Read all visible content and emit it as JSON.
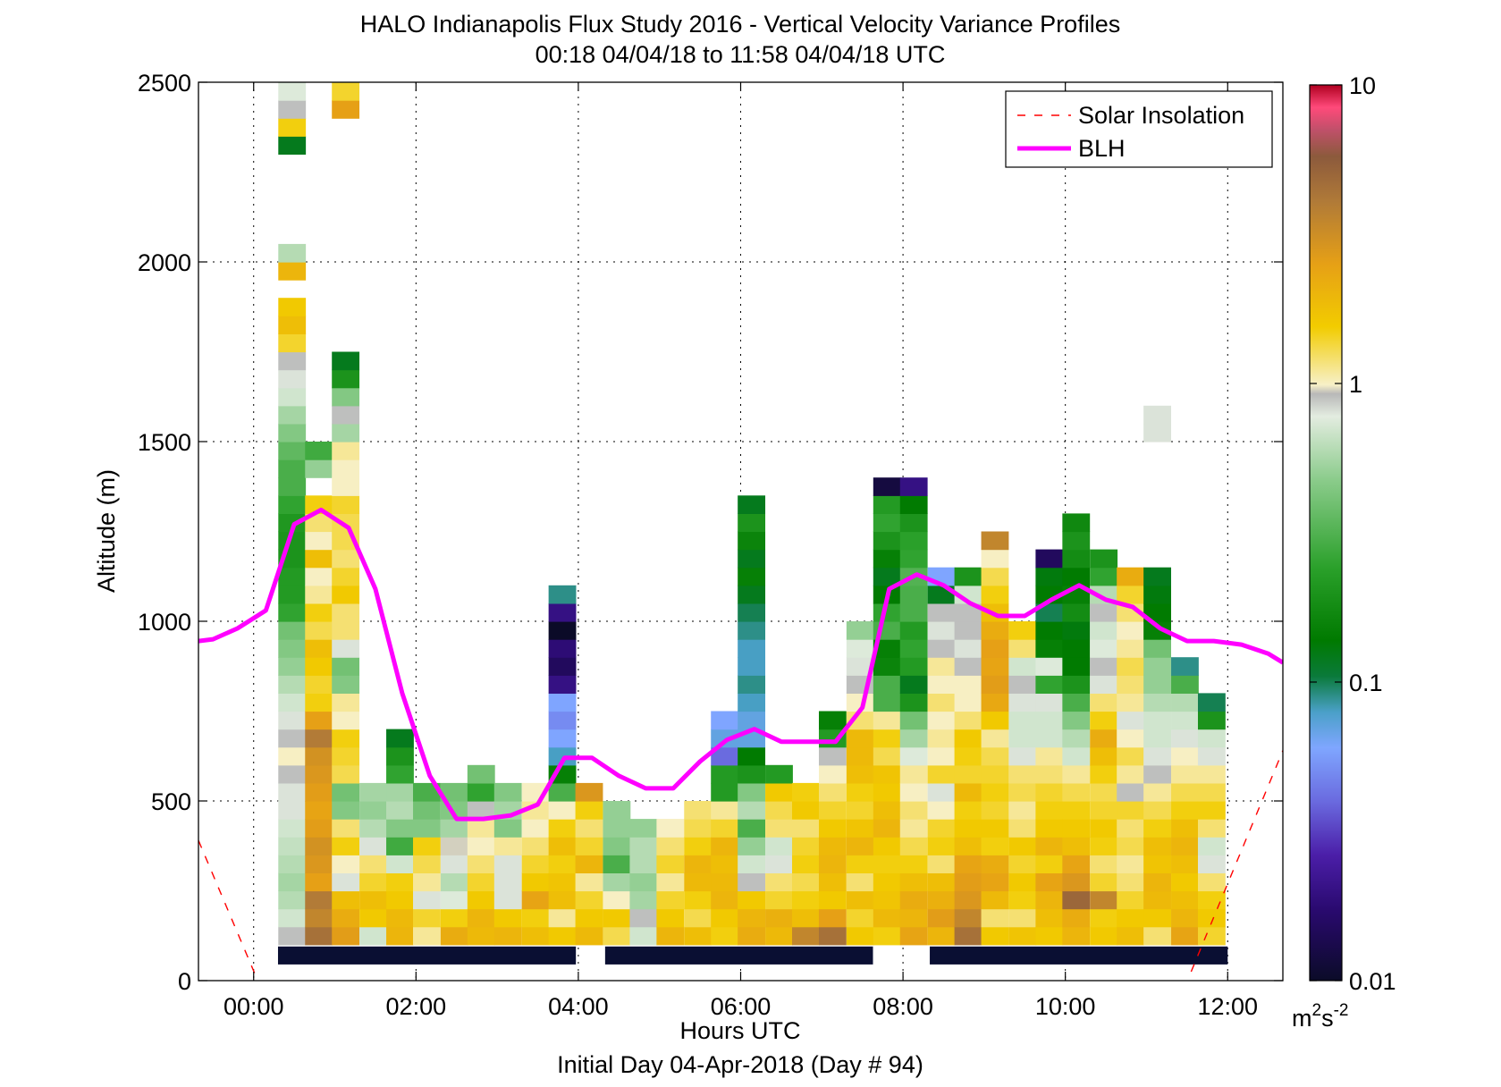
{
  "chart_data": {
    "type": "heatmap",
    "title": "HALO Indianapolis Flux Study 2016 - Vertical Velocity Variance Profiles",
    "subtitle": "00:18 04/04/18 to 11:58 04/04/18  UTC",
    "xlabel": "Hours UTC",
    "xlabel2": "Initial Day 04-Apr-2018 (Day # 94)",
    "ylabel": "Altitude (m)",
    "xlim": [
      -0.68,
      12.68
    ],
    "ylim": [
      0,
      2500
    ],
    "x_ticks": [
      0,
      2,
      4,
      6,
      8,
      10,
      12
    ],
    "x_tick_labels": [
      "00:00",
      "02:00",
      "04:00",
      "06:00",
      "08:00",
      "10:00",
      "12:00"
    ],
    "y_ticks": [
      0,
      500,
      1000,
      1500,
      2000,
      2500
    ],
    "y_tick_labels": [
      "0",
      "500",
      "1000",
      "1500",
      "2000",
      "2500"
    ],
    "grid": true,
    "legend_position": "top-right",
    "legend": [
      "Solar Insolation",
      "BLH"
    ],
    "colorbar": {
      "scale": "log",
      "range": [
        0.01,
        10
      ],
      "tick_values": [
        0.01,
        0.1,
        1,
        10
      ],
      "tick_labels": [
        "0.01",
        "0.1",
        "1",
        "10"
      ],
      "unit_base": "m",
      "unit_exp1": "2",
      "unit_mid": "s",
      "unit_exp2": "-2"
    },
    "cell_height_m": 50,
    "cell_width_h": 0.333,
    "columns": [
      {
        "t": 0.47,
        "z0": 100,
        "v": [
          0.9,
          0.7,
          0.6,
          0.55,
          0.6,
          0.65,
          0.7,
          0.8,
          0.8,
          0.9,
          1.0,
          0.9,
          0.8,
          0.7,
          0.6,
          0.5,
          0.45,
          0.4,
          0.25,
          0.22,
          0.22,
          0.2,
          0.2,
          0.21,
          0.25,
          0.3,
          0.3,
          0.35,
          0.45,
          0.55,
          0.7,
          0.8,
          0.9,
          1.4,
          1.8,
          1.6,
          null,
          2.0,
          0.6,
          null,
          null,
          null,
          null,
          null,
          0.12,
          1.5,
          0.9,
          0.75,
          0.6
        ]
      },
      {
        "t": 0.8,
        "z0": 100,
        "v": [
          4.5,
          3.5,
          4.0,
          2.5,
          2.8,
          3.0,
          2.6,
          2.4,
          2.6,
          2.8,
          3.0,
          4.0,
          2.5,
          1.5,
          1.4,
          1.6,
          1.8,
          1.3,
          1.5,
          1.1,
          1.0,
          1.8,
          1.0,
          1.2,
          1.5,
          null,
          0.5,
          0.28
        ]
      },
      {
        "t": 1.13,
        "z0": 100,
        "v": [
          2.6,
          2.2,
          1.8,
          0.8,
          1.0,
          1.5,
          1.2,
          0.45,
          0.4,
          1.3,
          1.4,
          1.5,
          1.0,
          1.1,
          0.45,
          0.4,
          0.8,
          1.2,
          1.2,
          1.6,
          1.4,
          1.2,
          1.3,
          1.3,
          1.4,
          1.0,
          1.0,
          1.1,
          0.55,
          0.9,
          0.45,
          0.2,
          0.12,
          null,
          null,
          null,
          null,
          null,
          null,
          null,
          null,
          null,
          null,
          null,
          null,
          null,
          2.5,
          1.4,
          0.7,
          1.8,
          0.5
        ]
      },
      {
        "t": 1.47,
        "z0": 100,
        "v": [
          0.7,
          1.6,
          1.8,
          1.4,
          1.2,
          0.8,
          0.6,
          0.5,
          0.55
        ]
      },
      {
        "t": 1.8,
        "z0": 100,
        "v": [
          2.0,
          1.9,
          1.6,
          1.5,
          0.7,
          0.28,
          0.45,
          0.6,
          0.55,
          0.25,
          0.2,
          0.12
        ]
      },
      {
        "t": 2.13,
        "z0": 100,
        "v": [
          1.1,
          1.4,
          0.8,
          1.1,
          1.3,
          1.5,
          0.45,
          0.4,
          0.3
        ]
      },
      {
        "t": 2.47,
        "z0": 100,
        "v": [
          2.2,
          1.5,
          0.75,
          0.6,
          0.8,
          0.95,
          0.55,
          0.45,
          0.4
        ]
      },
      {
        "t": 2.8,
        "z0": 100,
        "v": [
          1.9,
          2.0,
          1.6,
          1.4,
          1.2,
          1.0,
          1.1,
          0.9,
          0.25,
          0.4
        ]
      },
      {
        "t": 3.13,
        "z0": 100,
        "v": [
          2.0,
          1.6,
          0.8,
          0.8,
          0.8,
          1.1,
          0.45,
          0.55,
          0.45
        ]
      },
      {
        "t": 3.47,
        "z0": 100,
        "v": [
          1.8,
          1.5,
          2.4,
          1.6,
          1.4,
          1.2,
          1.0,
          1.1,
          1.0
        ]
      },
      {
        "t": 3.8,
        "z0": 100,
        "v": [
          1.6,
          1.1,
          1.8,
          1.7,
          1.5,
          1.8,
          1.5,
          1.0,
          0.3,
          0.15,
          0.08,
          0.06,
          0.05,
          0.06,
          0.02,
          0.015,
          0.018,
          0.01,
          0.02,
          0.09
        ]
      },
      {
        "t": 4.13,
        "z0": 100,
        "v": [
          1.9,
          1.6,
          1.4,
          1.1,
          2.0,
          1.4,
          1.2,
          1.5,
          2.8
        ]
      },
      {
        "t": 4.47,
        "z0": 100,
        "v": [
          1.3,
          1.6,
          1.0,
          0.55,
          0.3,
          0.45,
          0.5,
          0.5
        ]
      },
      {
        "t": 4.8,
        "z0": 100,
        "v": [
          0.7,
          0.9,
          0.55,
          0.5,
          0.6,
          0.6,
          0.5
        ]
      },
      {
        "t": 5.13,
        "z0": 100,
        "v": [
          2.0,
          1.6,
          1.4,
          1.1,
          1.4,
          1.2,
          1.0
        ]
      },
      {
        "t": 5.47,
        "z0": 100,
        "v": [
          1.8,
          1.3,
          1.5,
          1.9,
          2.0,
          1.5,
          1.3,
          1.2
        ]
      },
      {
        "t": 5.8,
        "z0": 100,
        "v": [
          1.5,
          1.6,
          2.0,
          1.9,
          1.8,
          2.0,
          1.4,
          1.1,
          0.22,
          0.22,
          0.04,
          0.07,
          0.06
        ]
      },
      {
        "t": 6.13,
        "z0": 100,
        "v": [
          2.2,
          2.0,
          1.6,
          0.9,
          0.7,
          0.5,
          0.3,
          0.6,
          0.45,
          0.2,
          0.14,
          0.07,
          0.07,
          0.08,
          0.09,
          0.08,
          0.08,
          0.09,
          0.1,
          0.12,
          0.15,
          0.12,
          0.16,
          0.2,
          0.12
        ]
      },
      {
        "t": 6.47,
        "z0": 100,
        "v": [
          1.9,
          2.1,
          1.4,
          1.2,
          0.8,
          0.7,
          1.2,
          1.3,
          1.6,
          0.22
        ]
      },
      {
        "t": 6.8,
        "z0": 100,
        "v": [
          3.5,
          1.8,
          1.5,
          1.3,
          1.5,
          1.4,
          1.2,
          1.6,
          1.5
        ]
      },
      {
        "t": 7.13,
        "z0": 100,
        "v": [
          4.5,
          2.5,
          1.6,
          1.8,
          2.0,
          1.9,
          1.6,
          1.4,
          1.2,
          1.0,
          0.9,
          0.22,
          0.15
        ]
      },
      {
        "t": 7.47,
        "z0": 100,
        "v": [
          1.6,
          1.4,
          1.8,
          1.2,
          1.5,
          2.0,
          1.7,
          1.4,
          1.5,
          1.8,
          1.9,
          1.9,
          1.2,
          1.0,
          0.9,
          0.8,
          0.75,
          0.5
        ]
      },
      {
        "t": 7.8,
        "z0": 100,
        "v": [
          1.5,
          1.9,
          1.7,
          1.6,
          1.5,
          1.6,
          2.0,
          1.8,
          1.6,
          1.7,
          1.3,
          1.5,
          1.1,
          0.3,
          0.3,
          0.16,
          0.15,
          0.3,
          0.25,
          0.14,
          0.12,
          0.15,
          0.2,
          0.25,
          0.22,
          0.012
        ]
      },
      {
        "t": 8.13,
        "z0": 100,
        "v": [
          2.4,
          2.0,
          2.2,
          1.8,
          1.5,
          1.3,
          1.1,
          1.2,
          1.0,
          1.1,
          0.75,
          0.55,
          0.4,
          0.2,
          0.12,
          0.22,
          0.25,
          0.22,
          0.3,
          0.3,
          0.32,
          0.25,
          0.24,
          0.2,
          0.14,
          0.02
        ]
      },
      {
        "t": 8.47,
        "z0": 100,
        "v": [
          2.0,
          2.6,
          2.1,
          1.8,
          1.2,
          1.5,
          1.4,
          1.0,
          0.8,
          1.4,
          1.0,
          1.1,
          1.0,
          1.2,
          1.0,
          1.1,
          0.9,
          0.8,
          0.9,
          0.12,
          0.06
        ]
      },
      {
        "t": 8.8,
        "z0": 100,
        "v": [
          4.5,
          3.5,
          2.8,
          2.6,
          2.4,
          1.8,
          1.6,
          1.5,
          1.9,
          1.4,
          1.5,
          1.6,
          1.2,
          1.0,
          1.0,
          0.9,
          0.8,
          0.9,
          0.9,
          0.7,
          0.2
        ]
      },
      {
        "t": 9.13,
        "z0": 100,
        "v": [
          1.6,
          1.2,
          1.9,
          2.4,
          2.2,
          1.5,
          1.6,
          1.4,
          1.5,
          1.4,
          1.3,
          1.1,
          1.6,
          2.3,
          2.6,
          2.4,
          2.5,
          2.2,
          1.8,
          1.5,
          1.3,
          1.0,
          3.5
        ]
      },
      {
        "t": 9.47,
        "z0": 100,
        "v": [
          1.7,
          1.2,
          1.5,
          1.6,
          1.4,
          1.6,
          1.2,
          1.1,
          1.3,
          1.2,
          0.8,
          0.7,
          0.7,
          0.8,
          0.9,
          0.7,
          1.2,
          1.5
        ]
      },
      {
        "t": 9.8,
        "z0": 100,
        "v": [
          1.6,
          1.8,
          2.0,
          2.4,
          1.5,
          2.0,
          1.6,
          1.5,
          1.4,
          1.2,
          1.1,
          0.7,
          0.7,
          0.8,
          0.25,
          0.75,
          0.15,
          0.14,
          0.1,
          0.14,
          0.13,
          0.015
        ]
      },
      {
        "t": 10.13,
        "z0": 100,
        "v": [
          2.0,
          2.2,
          5.0,
          2.8,
          2.4,
          1.8,
          1.6,
          1.5,
          1.3,
          1.1,
          0.7,
          0.6,
          0.45,
          0.3,
          0.2,
          0.14,
          0.14,
          0.13,
          0.18,
          0.15,
          0.14,
          0.18,
          0.2,
          0.17
        ]
      },
      {
        "t": 10.47,
        "z0": 100,
        "v": [
          1.6,
          1.5,
          3.5,
          1.4,
          1.2,
          1.5,
          1.6,
          1.4,
          1.3,
          1.5,
          1.8,
          2.2,
          1.5,
          1.2,
          0.8,
          0.9,
          0.75,
          0.7,
          0.9,
          0.6,
          0.25,
          0.2
        ]
      },
      {
        "t": 10.8,
        "z0": 100,
        "v": [
          1.8,
          1.6,
          1.4,
          1.2,
          1.1,
          1.3,
          1.2,
          1.4,
          0.9,
          1.1,
          1.3,
          1.0,
          0.8,
          1.1,
          1.2,
          1.3,
          1.1,
          1.0,
          1.2,
          1.4,
          2.2
        ]
      },
      {
        "t": 11.13,
        "z0": 100,
        "v": [
          1.2,
          1.6,
          1.9,
          2.0,
          1.7,
          1.8,
          1.5,
          1.3,
          1.1,
          0.9,
          0.8,
          0.7,
          0.7,
          0.6,
          0.5,
          0.5,
          0.4,
          0.15,
          0.14,
          0.13,
          0.12,
          null,
          null,
          null,
          null,
          null,
          null,
          null,
          0.8,
          0.8
        ]
      },
      {
        "t": 11.47,
        "z0": 100,
        "v": [
          2.4,
          2.0,
          1.8,
          1.6,
          1.8,
          2.0,
          1.8,
          1.5,
          1.3,
          1.1,
          1.0,
          0.8,
          0.7,
          0.6,
          0.3,
          0.09
        ]
      },
      {
        "t": 11.8,
        "z0": 100,
        "v": [
          1.4,
          1.6,
          1.5,
          1.2,
          0.8,
          0.7,
          1.2,
          1.5,
          1.3,
          1.1,
          0.8,
          0.7,
          0.2,
          0.1
        ]
      }
    ],
    "low_data_bar": [
      {
        "x0": 0.3,
        "x1": 3.97
      },
      {
        "x0": 4.33,
        "x1": 7.63
      },
      {
        "x0": 8.33,
        "x1": 12.0
      }
    ],
    "series": [
      {
        "name": "BLH",
        "x": [
          -0.68,
          -0.5,
          -0.2,
          0.15,
          0.5,
          0.83,
          1.17,
          1.5,
          1.83,
          2.17,
          2.5,
          2.83,
          3.17,
          3.5,
          3.83,
          4.17,
          4.5,
          4.83,
          5.17,
          5.5,
          5.83,
          6.17,
          6.5,
          6.83,
          7.17,
          7.5,
          7.83,
          8.17,
          8.5,
          8.83,
          9.17,
          9.5,
          9.83,
          10.17,
          10.5,
          10.83,
          11.17,
          11.5,
          11.83,
          12.17,
          12.5,
          12.68
        ],
        "y": [
          945,
          950,
          980,
          1030,
          1270,
          1310,
          1260,
          1090,
          800,
          570,
          450,
          450,
          460,
          490,
          620,
          620,
          570,
          535,
          535,
          610,
          670,
          700,
          665,
          665,
          665,
          760,
          1090,
          1130,
          1100,
          1050,
          1015,
          1015,
          1060,
          1100,
          1060,
          1040,
          980,
          945,
          945,
          935,
          910,
          885
        ]
      },
      {
        "name": "Solar Insolation",
        "x": [
          -0.68,
          0.05
        ],
        "y": [
          390,
          0
        ]
      },
      {
        "name": "Solar Insolation (evening)",
        "x": [
          11.55,
          12.68
        ],
        "y": [
          25,
          640
        ]
      }
    ],
    "colors": {
      "blh": "#ff00ff",
      "solar": "#ff0000",
      "low_bar": "#0a0f33"
    }
  }
}
